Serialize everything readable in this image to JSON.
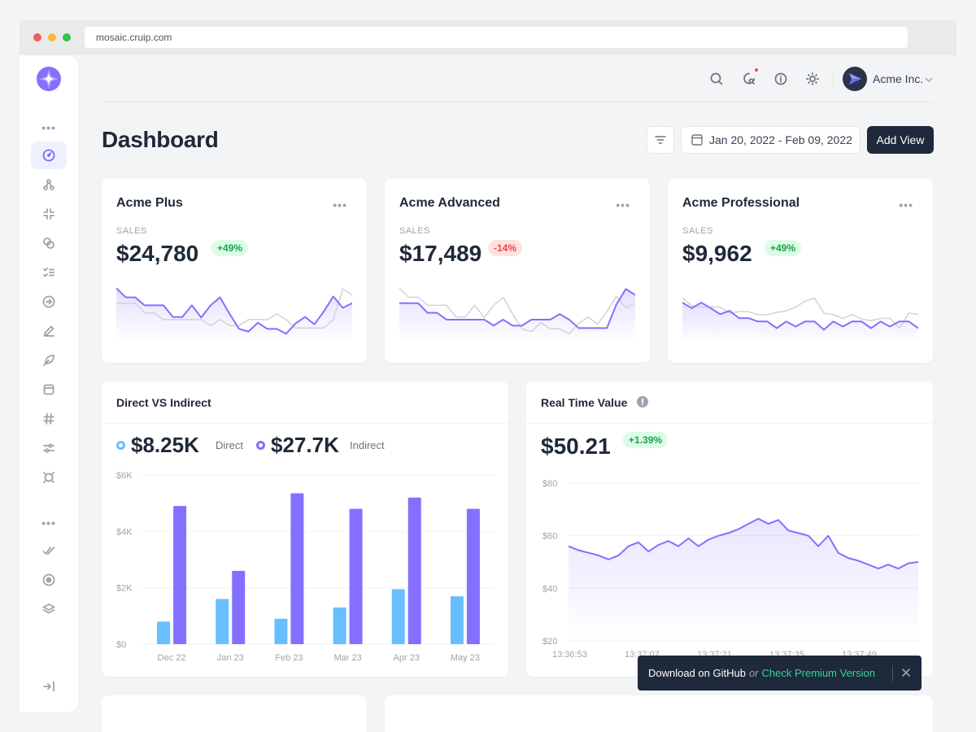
{
  "browser": {
    "url": "mosaic.cruip.com"
  },
  "sidebar": {
    "items": [
      {
        "icon": "dashboard-icon",
        "active": true
      },
      {
        "icon": "ecommerce-icon"
      },
      {
        "icon": "community-icon"
      },
      {
        "icon": "finance-icon"
      },
      {
        "icon": "tasks-icon"
      },
      {
        "icon": "messages-icon"
      },
      {
        "icon": "inbox-icon"
      },
      {
        "icon": "campaigns-icon"
      },
      {
        "icon": "calendar-icon"
      },
      {
        "icon": "hashtag-icon"
      },
      {
        "icon": "settings-icon"
      },
      {
        "icon": "utility-icon"
      },
      {
        "icon": "checkmark-icon"
      },
      {
        "icon": "components-icon"
      },
      {
        "icon": "layers-icon"
      }
    ],
    "collapse_icon": "expand-sidebar-icon"
  },
  "header": {
    "icons": [
      "search-icon",
      "notifications-icon",
      "info-icon",
      "theme-toggle-icon"
    ],
    "user_name": "Acme Inc."
  },
  "page": {
    "title": "Dashboard",
    "date_range": "Jan 20, 2022 - Feb 09, 2022",
    "add_view_label": "Add View"
  },
  "colors": {
    "accent": "#8470ff",
    "sky": "#67bfff",
    "gray_line": "#d1d5db",
    "dark": "#1e293b",
    "green": "#16a34a",
    "red": "#ef4444"
  },
  "cards": [
    {
      "title": "Acme Plus",
      "label": "SALES",
      "value": "$24,780",
      "change": "+49%",
      "trend": "up"
    },
    {
      "title": "Acme Advanced",
      "label": "SALES",
      "value": "$17,489",
      "change": "-14%",
      "trend": "down"
    },
    {
      "title": "Acme Professional",
      "label": "SALES",
      "value": "$9,962",
      "change": "+49%",
      "trend": "up"
    }
  ],
  "direct_indirect": {
    "title": "Direct VS Indirect",
    "direct_value": "$8.25K",
    "direct_label": "Direct",
    "indirect_value": "$27.7K",
    "indirect_label": "Indirect"
  },
  "realtime": {
    "title": "Real Time Value",
    "value": "$50.21",
    "change": "+1.39%"
  },
  "toast": {
    "github": "Download on GitHub",
    "or": "or",
    "premium": "Check Premium Version"
  },
  "chart_data": [
    {
      "type": "line",
      "title": "Acme Plus",
      "series": [
        {
          "values": [
            732,
            610,
            610,
            504,
            504,
            504,
            349,
            349,
            504,
            342,
            504,
            610,
            391,
            192,
            154,
            273,
            191,
            191,
            126,
            263,
            349,
            252,
            423,
            622,
            470,
            532
          ]
        },
        {
          "values": [
            532,
            532,
            532,
            404,
            404,
            314,
            314,
            314,
            314,
            314,
            234,
            314,
            234,
            234,
            314,
            314,
            314,
            388,
            314,
            202,
            202,
            202,
            202,
            314,
            720,
            642
          ]
        }
      ]
    },
    {
      "type": "line",
      "title": "Acme Advanced",
      "series": [
        {
          "values": [
            532,
            532,
            532,
            404,
            404,
            314,
            314,
            314,
            314,
            314,
            234,
            314,
            234,
            234,
            314,
            314,
            314,
            388,
            314,
            202,
            202,
            202,
            202,
            514,
            720,
            642
          ]
        },
        {
          "values": [
            732,
            610,
            610,
            504,
            504,
            504,
            349,
            349,
            504,
            342,
            504,
            610,
            391,
            192,
            154,
            273,
            191,
            191,
            126,
            263,
            349,
            252,
            423,
            622,
            470,
            532
          ]
        }
      ]
    },
    {
      "type": "line",
      "title": "Acme Professional",
      "series": [
        {
          "values": [
            540,
            466,
            540,
            466,
            385,
            432,
            334,
            334,
            289,
            289,
            200,
            289,
            222,
            289,
            289,
            180,
            289,
            222,
            289,
            289,
            200,
            289,
            222,
            289,
            289,
            200
          ]
        },
        {
          "values": [
            600,
            500,
            480,
            480,
            480,
            400,
            420,
            420,
            380,
            380,
            410,
            430,
            480,
            560,
            600,
            400,
            380,
            330,
            380,
            320,
            300,
            330,
            330,
            200,
            400,
            380
          ]
        }
      ]
    },
    {
      "type": "bar",
      "title": "Direct VS Indirect",
      "categories": [
        "Dec 22",
        "Jan 23",
        "Feb 23",
        "Mar 23",
        "Apr 23",
        "May 23"
      ],
      "ylim": [
        0,
        6000
      ],
      "yticks": [
        "$0",
        "$2K",
        "$4K",
        "$6K"
      ],
      "series": [
        {
          "name": "Direct",
          "values": [
            800,
            1600,
            900,
            1300,
            1950,
            1700
          ]
        },
        {
          "name": "Indirect",
          "values": [
            4900,
            2600,
            5350,
            4800,
            5200,
            4800
          ]
        }
      ]
    },
    {
      "type": "area",
      "title": "Real Time Value",
      "ylim": [
        20,
        80
      ],
      "yticks": [
        "$20",
        "$40",
        "$60",
        "$80"
      ],
      "xticks": [
        "13:36:53",
        "13:37:07",
        "13:37:21",
        "13:37:35",
        "13:37:49"
      ],
      "series": [
        {
          "values": [
            56,
            54.5,
            53.5,
            52.5,
            51,
            52.5,
            56,
            57.5,
            54,
            56.5,
            58,
            56,
            59,
            56,
            58.5,
            60,
            61,
            62.5,
            64.5,
            66.5,
            64.5,
            66,
            62,
            61,
            60,
            56,
            60,
            53.5,
            51.5,
            50.5,
            49,
            47.5,
            49,
            47.5,
            49.5,
            50
          ]
        }
      ]
    }
  ]
}
